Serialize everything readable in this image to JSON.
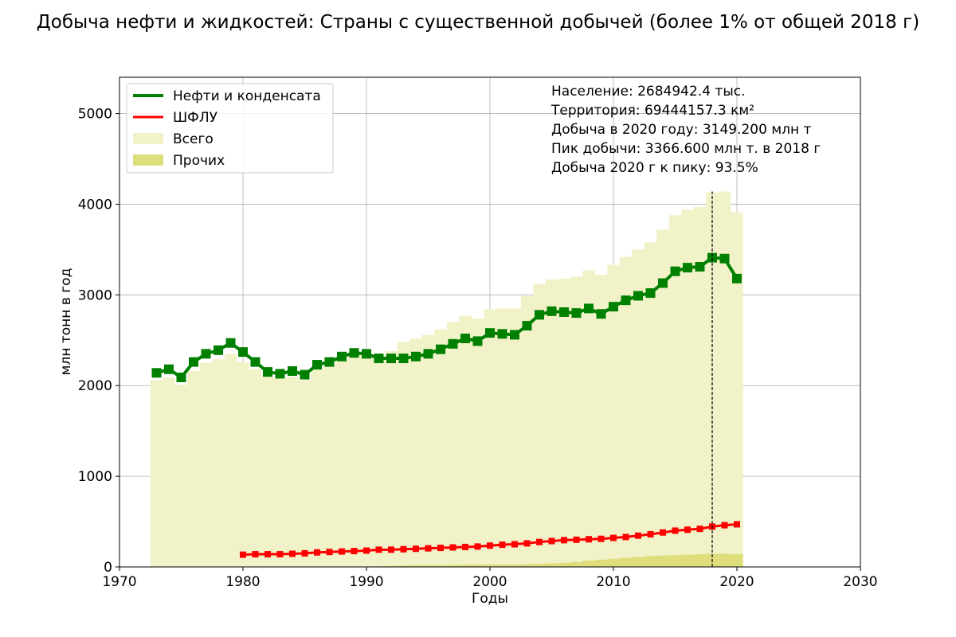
{
  "chart_data": {
    "type": "line",
    "title": "Добыча нефти и жидкостей: Страны с существенной добычей (более 1% от общей 2018 г)",
    "xlabel": "Годы",
    "ylabel": "млн тонн в год",
    "xlim": [
      1970,
      2030
    ],
    "ylim": [
      0,
      5400
    ],
    "x_ticks": [
      "1970",
      "1980",
      "1990",
      "2000",
      "2010",
      "2020",
      "2030"
    ],
    "y_ticks": [
      "0",
      "1000",
      "2000",
      "3000",
      "4000",
      "5000"
    ],
    "grid": true,
    "legend_position": "top-left",
    "legend": [
      {
        "label": "Нефти и конденсата",
        "kind": "line",
        "color": "#008000"
      },
      {
        "label": "ШФЛУ",
        "kind": "line",
        "color": "#ff0000"
      },
      {
        "label": "Всего",
        "kind": "area",
        "color": "#f2f2c9"
      },
      {
        "label": "Прочих",
        "kind": "area",
        "color": "#dede7d"
      }
    ],
    "annotations": [
      "Население: 2684942.4 тыс.",
      "Территория: 69444157.3 км²",
      "Добыча в 2020 году: 3149.200 млн т",
      "Пик добычи: 3366.600 млн т. в 2018 г",
      "Добыча 2020 г к пику: 93.5%"
    ],
    "peak_year": 2018,
    "series": [
      {
        "name": "Нефти и конденсата",
        "color": "#008000",
        "x": [
          1973,
          1974,
          1975,
          1976,
          1977,
          1978,
          1979,
          1980,
          1981,
          1982,
          1983,
          1984,
          1985,
          1986,
          1987,
          1988,
          1989,
          1990,
          1991,
          1992,
          1993,
          1994,
          1995,
          1996,
          1997,
          1998,
          1999,
          2000,
          2001,
          2002,
          2003,
          2004,
          2005,
          2006,
          2007,
          2008,
          2009,
          2010,
          2011,
          2012,
          2013,
          2014,
          2015,
          2016,
          2017,
          2018,
          2019,
          2020
        ],
        "values": [
          2140,
          2180,
          2090,
          2260,
          2350,
          2390,
          2470,
          2370,
          2260,
          2150,
          2130,
          2160,
          2120,
          2230,
          2260,
          2320,
          2360,
          2350,
          2300,
          2300,
          2300,
          2320,
          2350,
          2400,
          2460,
          2520,
          2490,
          2580,
          2570,
          2560,
          2660,
          2780,
          2820,
          2810,
          2800,
          2850,
          2790,
          2870,
          2940,
          2990,
          3020,
          3130,
          3260,
          3300,
          3310,
          3410,
          3400,
          3180
        ]
      },
      {
        "name": "ШФЛУ",
        "color": "#ff0000",
        "x": [
          1980,
          1981,
          1982,
          1983,
          1984,
          1985,
          1986,
          1987,
          1988,
          1989,
          1990,
          1991,
          1992,
          1993,
          1994,
          1995,
          1996,
          1997,
          1998,
          1999,
          2000,
          2001,
          2002,
          2003,
          2004,
          2005,
          2006,
          2007,
          2008,
          2009,
          2010,
          2011,
          2012,
          2013,
          2014,
          2015,
          2016,
          2017,
          2018,
          2019,
          2020
        ],
        "values": [
          135,
          140,
          140,
          140,
          145,
          150,
          160,
          165,
          170,
          175,
          180,
          190,
          190,
          195,
          200,
          205,
          210,
          215,
          220,
          225,
          235,
          245,
          250,
          260,
          275,
          285,
          295,
          300,
          305,
          310,
          320,
          330,
          345,
          360,
          380,
          400,
          410,
          420,
          445,
          460,
          470
        ]
      },
      {
        "name": "Всего",
        "color": "#f2f2c9",
        "x": [
          1973,
          1974,
          1975,
          1976,
          1977,
          1978,
          1979,
          1980,
          1981,
          1982,
          1983,
          1984,
          1985,
          1986,
          1987,
          1988,
          1989,
          1990,
          1991,
          1992,
          1993,
          1994,
          1995,
          1996,
          1997,
          1998,
          1999,
          2000,
          2001,
          2002,
          2003,
          2004,
          2005,
          2006,
          2007,
          2008,
          2009,
          2010,
          2011,
          2012,
          2013,
          2014,
          2015,
          2016,
          2017,
          2018,
          2019,
          2020
        ],
        "values": [
          2060,
          2090,
          2010,
          2160,
          2250,
          2290,
          2350,
          2260,
          2180,
          2100,
          2080,
          2100,
          2060,
          2180,
          2230,
          2290,
          2340,
          2340,
          2330,
          2380,
          2480,
          2520,
          2560,
          2620,
          2700,
          2770,
          2740,
          2840,
          2850,
          2850,
          2990,
          3120,
          3170,
          3180,
          3200,
          3270,
          3220,
          3330,
          3420,
          3500,
          3580,
          3720,
          3880,
          3940,
          3970,
          4130,
          4140,
          3910
        ]
      },
      {
        "name": "Прочих",
        "color": "#dede7d",
        "x": [
          1973,
          1974,
          1975,
          1976,
          1977,
          1978,
          1979,
          1980,
          1981,
          1982,
          1983,
          1984,
          1985,
          1986,
          1987,
          1988,
          1989,
          1990,
          1991,
          1992,
          1993,
          1994,
          1995,
          1996,
          1997,
          1998,
          1999,
          2000,
          2001,
          2002,
          2003,
          2004,
          2005,
          2006,
          2007,
          2008,
          2009,
          2010,
          2011,
          2012,
          2013,
          2014,
          2015,
          2016,
          2017,
          2018,
          2019,
          2020
        ],
        "values": [
          0,
          0,
          0,
          0,
          0,
          0,
          0,
          0,
          0,
          0,
          0,
          0,
          0,
          0,
          0,
          0,
          0,
          0,
          5,
          10,
          15,
          20,
          20,
          20,
          22,
          25,
          25,
          28,
          28,
          28,
          30,
          35,
          40,
          45,
          55,
          70,
          80,
          90,
          100,
          110,
          120,
          125,
          130,
          135,
          140,
          145,
          145,
          140
        ]
      }
    ]
  }
}
